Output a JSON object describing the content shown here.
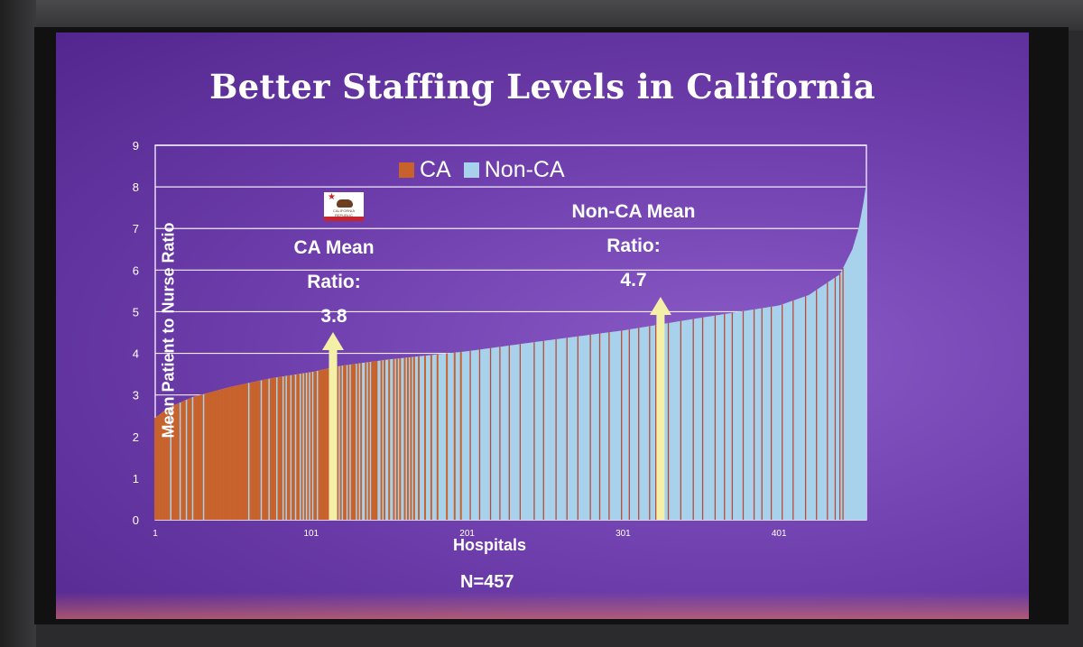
{
  "slide": {
    "title": "Better Staffing Levels in California",
    "n_label": "N=457",
    "ca_annotation": {
      "line1": "CA Mean",
      "line2": "Ratio:",
      "value": "3.8"
    },
    "nonca_annotation": {
      "line1": "Non-CA Mean",
      "line2": "Ratio:",
      "value": "4.7"
    },
    "flag_text": "CALIFORNIA REPUBLIC"
  },
  "chart_data": {
    "type": "bar",
    "title": "",
    "xlabel": "Hospitals",
    "ylabel": "Mean Patient to Nurse Ratio",
    "ylim": [
      0,
      9
    ],
    "yticks": [
      0,
      1,
      2,
      3,
      4,
      5,
      6,
      7,
      8,
      9
    ],
    "xticks": [
      1,
      101,
      201,
      301,
      401
    ],
    "n_hospitals": 457,
    "grid": true,
    "legend": {
      "placement": "top-center",
      "entries": [
        "CA",
        "Non-CA"
      ]
    },
    "colors": {
      "CA": "#c8622c",
      "Non-CA": "#a8d2ec",
      "CA_line": "#b84a3a"
    },
    "curve_points": [
      {
        "rank": 1,
        "ratio": 2.45
      },
      {
        "rank": 10,
        "ratio": 2.7
      },
      {
        "rank": 25,
        "ratio": 2.95
      },
      {
        "rank": 50,
        "ratio": 3.2
      },
      {
        "rank": 75,
        "ratio": 3.4
      },
      {
        "rank": 101,
        "ratio": 3.55
      },
      {
        "rank": 120,
        "ratio": 3.7
      },
      {
        "rank": 150,
        "ratio": 3.85
      },
      {
        "rank": 201,
        "ratio": 4.05
      },
      {
        "rank": 250,
        "ratio": 4.3
      },
      {
        "rank": 301,
        "ratio": 4.55
      },
      {
        "rank": 350,
        "ratio": 4.85
      },
      {
        "rank": 401,
        "ratio": 5.15
      },
      {
        "rank": 420,
        "ratio": 5.4
      },
      {
        "rank": 440,
        "ratio": 5.9
      },
      {
        "rank": 448,
        "ratio": 6.5
      },
      {
        "rank": 452,
        "ratio": 7.0
      },
      {
        "rank": 455,
        "ratio": 7.6
      },
      {
        "rank": 457,
        "ratio": 8.1
      }
    ],
    "ca_ranks": [
      1,
      2,
      3,
      4,
      5,
      6,
      7,
      8,
      9,
      10,
      12,
      13,
      14,
      15,
      16,
      18,
      19,
      20,
      22,
      23,
      24,
      26,
      27,
      28,
      29,
      30,
      31,
      33,
      34,
      35,
      36,
      37,
      38,
      39,
      40,
      41,
      42,
      43,
      44,
      45,
      46,
      47,
      48,
      49,
      50,
      51,
      52,
      53,
      54,
      55,
      56,
      57,
      58,
      59,
      60,
      62,
      63,
      64,
      65,
      66,
      67,
      68,
      70,
      71,
      72,
      73,
      75,
      76,
      77,
      78,
      80,
      81,
      82,
      84,
      86,
      87,
      89,
      90,
      92,
      93,
      95,
      97,
      99,
      101,
      103,
      104,
      106,
      107,
      108,
      109,
      110,
      111,
      112,
      115,
      117,
      118,
      120,
      122,
      123,
      125,
      127,
      128,
      129,
      131,
      133,
      136,
      138,
      140,
      141,
      142,
      143,
      146,
      148,
      151,
      154,
      156,
      158,
      161,
      163,
      165,
      167,
      170,
      174,
      178,
      182,
      188,
      193,
      197,
      203,
      209,
      216,
      222,
      228,
      235,
      244,
      250,
      258,
      265,
      272,
      280,
      286,
      292,
      300,
      305,
      311,
      318,
      322,
      330,
      338,
      346,
      352,
      360,
      366,
      371,
      378,
      385,
      390,
      396,
      403,
      410,
      418,
      425,
      432,
      437,
      440,
      442
    ],
    "annotations": [
      {
        "text": "CA Mean Ratio: 3.8",
        "rank": 115,
        "value": 3.8
      },
      {
        "text": "Non-CA Mean Ratio: 4.7",
        "rank": 325,
        "value": 4.7
      }
    ]
  }
}
